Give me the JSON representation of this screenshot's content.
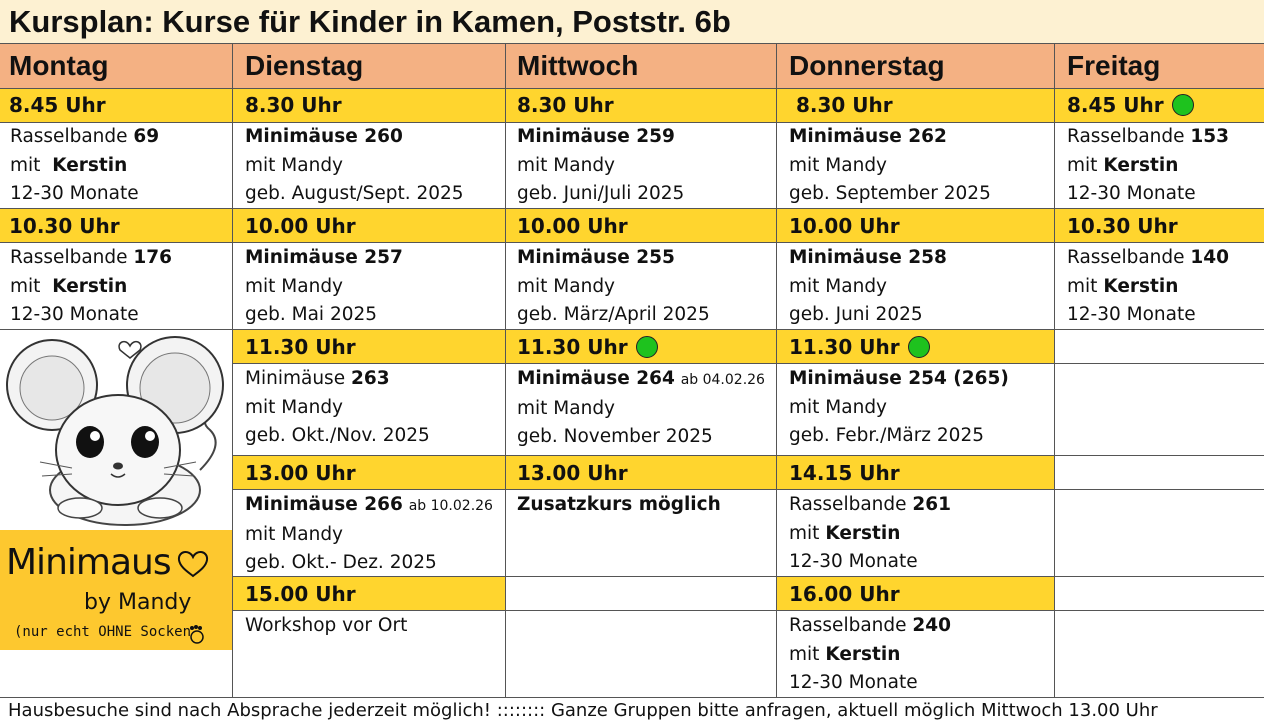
{
  "title": "Kursplan: Kurse für Kinder in Kamen, Poststr. 6b",
  "days": [
    "Montag",
    "Dienstag",
    "Mittwoch",
    "Donnerstag",
    "Freitag"
  ],
  "times": {
    "mo1": "8.45 Uhr",
    "di1": "8.30 Uhr",
    "mi1": "8.30 Uhr",
    "do1": "8.30 Uhr",
    "fr1": "8.45 Uhr",
    "mo2": "10.30 Uhr",
    "di2": "10.00 Uhr",
    "mi2": "10.00 Uhr",
    "do2": "10.00 Uhr",
    "fr2": "10.30 Uhr",
    "di3": "11.30 Uhr",
    "mi3": "11.30 Uhr",
    "do3": "11.30 Uhr",
    "di4": "13.00 Uhr",
    "mi4": "13.00 Uhr",
    "do4": "14.15 Uhr",
    "di5": "15.00 Uhr",
    "do5": "16.00 Uhr"
  },
  "courses": {
    "mo1": {
      "name": "Rasselbande",
      "num": "69",
      "with": "mit",
      "teacher": "Kerstin",
      "age": "12-30 Monate"
    },
    "di1": {
      "name": "Minimäuse 260",
      "with": "mit Mandy",
      "age": "geb. August/Sept. 2025"
    },
    "mi1": {
      "name": "Minimäuse 259",
      "with": "mit Mandy",
      "age": "geb. Juni/Juli 2025"
    },
    "do1": {
      "name": "Minimäuse 262",
      "with": "mit Mandy",
      "age": "geb. September 2025"
    },
    "fr1": {
      "name": "Rasselbande",
      "num": "153",
      "with": "mit",
      "teacher": "Kerstin",
      "age": "12-30 Monate"
    },
    "mo2": {
      "name": "Rasselbande",
      "num": "176",
      "with": "mit",
      "teacher": "Kerstin",
      "age": "12-30 Monate"
    },
    "di2": {
      "name": "Minimäuse 257",
      "with": "mit Mandy",
      "age": "geb. Mai 2025"
    },
    "mi2": {
      "name": "Minimäuse 255",
      "with": "mit Mandy",
      "age": "geb. März/April 2025"
    },
    "do2": {
      "name": "Minimäuse 258",
      "with": "mit Mandy",
      "age": "geb. Juni 2025"
    },
    "fr2": {
      "name": "Rasselbande",
      "num": "140",
      "with": "mit",
      "teacher": "Kerstin",
      "age": "12-30 Monate"
    },
    "di3": {
      "name": "Minimäuse",
      "num": "263",
      "with": "mit Mandy",
      "age": "geb. Okt./Nov. 2025"
    },
    "mi3": {
      "name": "Minimäuse 264",
      "note": "ab 04.02.26",
      "with": "mit Mandy",
      "age": "geb. November 2025"
    },
    "do3": {
      "name": "Minimäuse 254 (265)",
      "with": "mit Mandy",
      "age": "geb.  Febr./März 2025"
    },
    "di4": {
      "name": "Minimäuse 266",
      "note": "ab 10.02.26",
      "with": "mit Mandy",
      "age": "geb. Okt.- Dez. 2025"
    },
    "mi4": {
      "name": "Zusatzkurs möglich"
    },
    "do4": {
      "name": "Rasselbande",
      "num": "261",
      "with": "mit",
      "teacher": "Kerstin",
      "age": "12-30 Monate"
    },
    "di5": {
      "name": "Workshop vor Ort"
    },
    "do5": {
      "name": "Rasselbande",
      "num": "240",
      "with": "mit",
      "teacher": "Kerstin",
      "age": "12-30 Monate"
    }
  },
  "logo": {
    "line1": "Minimaus",
    "line2": "by Mandy",
    "line3": "(nur echt OHNE Socken"
  },
  "footer": "Hausbesuche sind nach Absprache jederzeit möglich!  ::::::::  Ganze Gruppen bitte anfragen, aktuell möglich Mittwoch 13.00 Uhr",
  "colors": {
    "title_bg": "#fdf1d2",
    "day_header_bg": "#f4b183",
    "time_bg": "#ffd52e",
    "dot": "#1ec21e",
    "logo_bg": "#fdc82f"
  }
}
